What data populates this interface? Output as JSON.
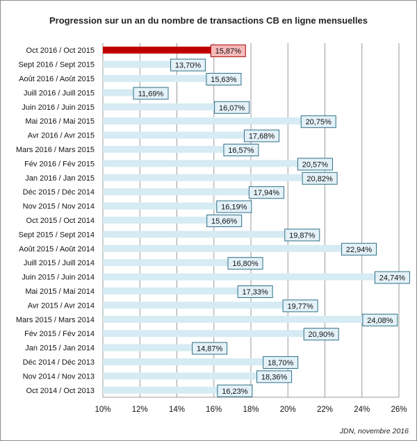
{
  "chart_data": {
    "type": "bar",
    "orientation": "horizontal",
    "title": "Progression sur un an du nombre de transactions CB en ligne mensuelles",
    "xlabel": "",
    "ylabel": "",
    "xlim": [
      10,
      26
    ],
    "x_ticks": [
      10,
      12,
      14,
      16,
      18,
      20,
      22,
      24,
      26
    ],
    "x_tick_labels": [
      "10%",
      "12%",
      "14%",
      "16%",
      "18%",
      "20%",
      "22%",
      "24%",
      "26%"
    ],
    "grid": "vertical",
    "legend": "none",
    "categories": [
      "Oct 2016 / Oct 2015",
      "Sept 2016 / Sept 2015",
      "Août 2016 / Août 2015",
      "Juill 2016 / Juill 2015",
      "Juin 2016 / Juin 2015",
      "Mai 2016 / Mai 2015",
      "Avr 2016 / Avr 2015",
      "Mars 2016 / Mars 2015",
      "Fév 2016 / Fév 2015",
      "Jan 2016 / Jan 2015",
      "Déc 2015 / Déc 2014",
      "Nov 2015 / Nov 2014",
      "Oct 2015 / Oct 2014",
      "Sept 2015 / Sept 2014",
      "Août 2015 / Août 2014",
      "Juill 2015 / Juill 2014",
      "Juin 2015 / Juin 2014",
      "Mai 2015 / Mai 2014",
      "Avr 2015 / Avr 2014",
      "Mars 2015 / Mars 2014",
      "Fév 2015 / Fév 2014",
      "Jan 2015 / Jan 2014",
      "Déc 2014 / Déc 2013",
      "Nov 2014 / Nov 2013",
      "Oct 2014 / Oct 2013"
    ],
    "values": [
      15.87,
      13.7,
      15.63,
      11.69,
      16.07,
      20.75,
      17.68,
      16.57,
      20.57,
      20.82,
      17.94,
      16.19,
      15.66,
      19.87,
      22.94,
      16.8,
      24.74,
      17.33,
      19.77,
      24.08,
      20.9,
      14.87,
      18.7,
      18.36,
      16.23
    ],
    "value_labels": [
      "15,87%",
      "13,70%",
      "15,63%",
      "11,69%",
      "16,07%",
      "20,75%",
      "17,68%",
      "16,57%",
      "20,57%",
      "20,82%",
      "17,94%",
      "16,19%",
      "15,66%",
      "19,87%",
      "22,94%",
      "16,80%",
      "24,74%",
      "17,33%",
      "19,77%",
      "24,08%",
      "20,90%",
      "14,87%",
      "18,70%",
      "18,36%",
      "16,23%"
    ],
    "highlight_index": 0,
    "colors": {
      "bar": "#d6ebf3",
      "highlight_bar": "#c00000",
      "label_bg": "#e3f1f8",
      "label_border": "#2f6f86",
      "highlight_label_bg": "#f7b9b9",
      "highlight_label_border": "#a40000",
      "grid": "#9a9a9a"
    }
  },
  "source": "JDN, novembre 2016"
}
